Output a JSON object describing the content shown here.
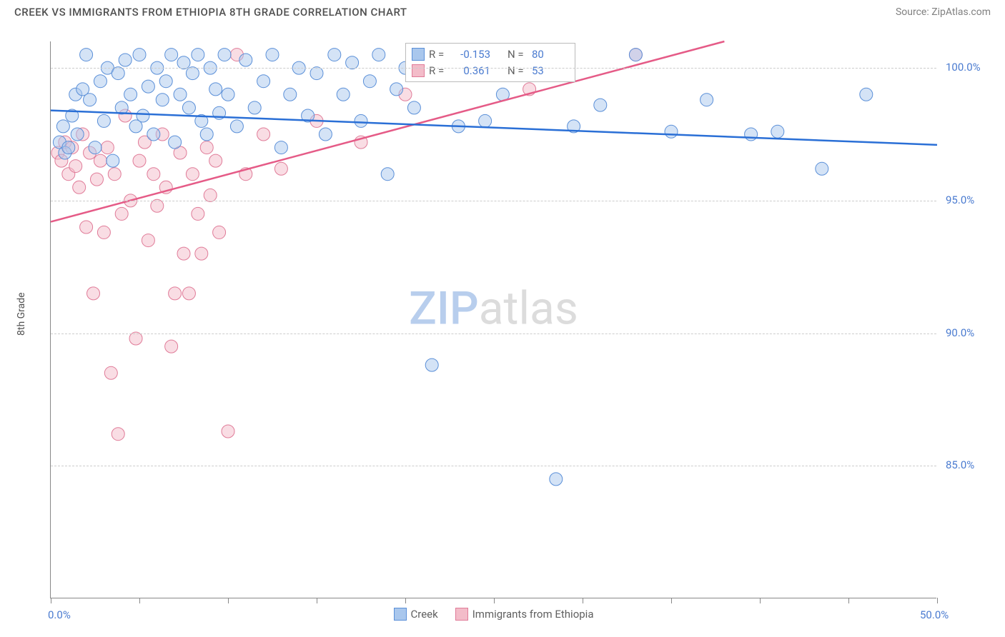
{
  "title": "CREEK VS IMMIGRANTS FROM ETHIOPIA 8TH GRADE CORRELATION CHART",
  "source": "Source: ZipAtlas.com",
  "y_axis_label": "8th Grade",
  "watermark": {
    "zip": "ZIP",
    "atlas": "atlas"
  },
  "chart": {
    "type": "scatter",
    "background_color": "#ffffff",
    "grid_color": "#cccccc",
    "axis_color": "#888888",
    "tick_label_color": "#4a7bd0",
    "xlim": [
      0,
      50
    ],
    "ylim": [
      80,
      101
    ],
    "xticks": [
      0,
      5,
      10,
      15,
      20,
      25,
      30,
      35,
      40,
      45,
      50
    ],
    "xtick_labels": {
      "0": "0.0%",
      "50": "50.0%"
    },
    "yticks": [
      85,
      90,
      95,
      100
    ],
    "ytick_labels": {
      "85": "85.0%",
      "90": "90.0%",
      "95": "95.0%",
      "100": "100.0%"
    },
    "marker_radius": 9,
    "marker_opacity": 0.5,
    "line_width": 2.5,
    "series": {
      "creek": {
        "label": "Creek",
        "fill": "#a9c7ed",
        "stroke": "#5a8fd8",
        "line_color": "#2a6fd6",
        "R": "-0.153",
        "N": "80",
        "trend": {
          "x1": 0,
          "y1": 98.4,
          "x2": 50,
          "y2": 97.1
        },
        "points": [
          [
            0.5,
            97.2
          ],
          [
            0.7,
            97.8
          ],
          [
            0.8,
            96.8
          ],
          [
            1.0,
            97.0
          ],
          [
            1.2,
            98.2
          ],
          [
            1.4,
            99.0
          ],
          [
            1.5,
            97.5
          ],
          [
            1.8,
            99.2
          ],
          [
            2.0,
            100.5
          ],
          [
            2.2,
            98.8
          ],
          [
            2.5,
            97.0
          ],
          [
            2.8,
            99.5
          ],
          [
            3.0,
            98.0
          ],
          [
            3.2,
            100.0
          ],
          [
            3.5,
            96.5
          ],
          [
            3.8,
            99.8
          ],
          [
            4.0,
            98.5
          ],
          [
            4.2,
            100.3
          ],
          [
            4.5,
            99.0
          ],
          [
            4.8,
            97.8
          ],
          [
            5.0,
            100.5
          ],
          [
            5.2,
            98.2
          ],
          [
            5.5,
            99.3
          ],
          [
            5.8,
            97.5
          ],
          [
            6.0,
            100.0
          ],
          [
            6.3,
            98.8
          ],
          [
            6.5,
            99.5
          ],
          [
            6.8,
            100.5
          ],
          [
            7.0,
            97.2
          ],
          [
            7.3,
            99.0
          ],
          [
            7.5,
            100.2
          ],
          [
            7.8,
            98.5
          ],
          [
            8.0,
            99.8
          ],
          [
            8.3,
            100.5
          ],
          [
            8.5,
            98.0
          ],
          [
            8.8,
            97.5
          ],
          [
            9.0,
            100.0
          ],
          [
            9.3,
            99.2
          ],
          [
            9.5,
            98.3
          ],
          [
            9.8,
            100.5
          ],
          [
            10.0,
            99.0
          ],
          [
            10.5,
            97.8
          ],
          [
            11.0,
            100.3
          ],
          [
            11.5,
            98.5
          ],
          [
            12.0,
            99.5
          ],
          [
            12.5,
            100.5
          ],
          [
            13.0,
            97.0
          ],
          [
            13.5,
            99.0
          ],
          [
            14.0,
            100.0
          ],
          [
            14.5,
            98.2
          ],
          [
            15.0,
            99.8
          ],
          [
            15.5,
            97.5
          ],
          [
            16.0,
            100.5
          ],
          [
            16.5,
            99.0
          ],
          [
            17.0,
            100.2
          ],
          [
            17.5,
            98.0
          ],
          [
            18.0,
            99.5
          ],
          [
            18.5,
            100.5
          ],
          [
            19.0,
            96.0
          ],
          [
            19.5,
            99.2
          ],
          [
            20.0,
            100.0
          ],
          [
            20.5,
            98.5
          ],
          [
            21.0,
            99.8
          ],
          [
            21.5,
            88.8
          ],
          [
            22.0,
            100.3
          ],
          [
            23.0,
            97.8
          ],
          [
            23.5,
            100.5
          ],
          [
            24.5,
            98.0
          ],
          [
            25.5,
            99.0
          ],
          [
            27.0,
            100.5
          ],
          [
            28.5,
            84.5
          ],
          [
            29.5,
            97.8
          ],
          [
            31.0,
            98.6
          ],
          [
            33.0,
            100.5
          ],
          [
            35.0,
            97.6
          ],
          [
            37.0,
            98.8
          ],
          [
            39.5,
            97.5
          ],
          [
            41.0,
            97.6
          ],
          [
            43.5,
            96.2
          ],
          [
            46.0,
            99.0
          ]
        ]
      },
      "ethiopia": {
        "label": "Immigrants from Ethiopia",
        "fill": "#f3bcc9",
        "stroke": "#e07b98",
        "line_color": "#e55b87",
        "R": "0.361",
        "N": "53",
        "trend": {
          "x1": 0,
          "y1": 94.2,
          "x2": 38,
          "y2": 101
        },
        "points": [
          [
            0.4,
            96.8
          ],
          [
            0.6,
            96.5
          ],
          [
            0.8,
            97.2
          ],
          [
            1.0,
            96.0
          ],
          [
            1.2,
            97.0
          ],
          [
            1.4,
            96.3
          ],
          [
            1.6,
            95.5
          ],
          [
            1.8,
            97.5
          ],
          [
            2.0,
            94.0
          ],
          [
            2.2,
            96.8
          ],
          [
            2.4,
            91.5
          ],
          [
            2.6,
            95.8
          ],
          [
            2.8,
            96.5
          ],
          [
            3.0,
            93.8
          ],
          [
            3.2,
            97.0
          ],
          [
            3.4,
            88.5
          ],
          [
            3.6,
            96.0
          ],
          [
            3.8,
            86.2
          ],
          [
            4.0,
            94.5
          ],
          [
            4.2,
            98.2
          ],
          [
            4.5,
            95.0
          ],
          [
            4.8,
            89.8
          ],
          [
            5.0,
            96.5
          ],
          [
            5.3,
            97.2
          ],
          [
            5.5,
            93.5
          ],
          [
            5.8,
            96.0
          ],
          [
            6.0,
            94.8
          ],
          [
            6.3,
            97.5
          ],
          [
            6.5,
            95.5
          ],
          [
            6.8,
            89.5
          ],
          [
            7.0,
            91.5
          ],
          [
            7.3,
            96.8
          ],
          [
            7.5,
            93.0
          ],
          [
            7.8,
            91.5
          ],
          [
            8.0,
            96.0
          ],
          [
            8.3,
            94.5
          ],
          [
            8.5,
            93.0
          ],
          [
            8.8,
            97.0
          ],
          [
            9.0,
            95.2
          ],
          [
            9.3,
            96.5
          ],
          [
            9.5,
            93.8
          ],
          [
            10.0,
            86.3
          ],
          [
            10.5,
            100.5
          ],
          [
            11.0,
            96.0
          ],
          [
            12.0,
            97.5
          ],
          [
            13.0,
            96.2
          ],
          [
            15.0,
            98.0
          ],
          [
            17.5,
            97.2
          ],
          [
            20.0,
            99.0
          ],
          [
            23.0,
            100.5
          ],
          [
            24.5,
            100.5
          ],
          [
            27.0,
            99.2
          ],
          [
            33.0,
            100.5
          ]
        ]
      }
    }
  },
  "stats_box": {
    "rows": [
      {
        "series": "creek",
        "r_label": "R =",
        "n_label": "N ="
      },
      {
        "series": "ethiopia",
        "r_label": "R =",
        "n_label": "N ="
      }
    ]
  }
}
